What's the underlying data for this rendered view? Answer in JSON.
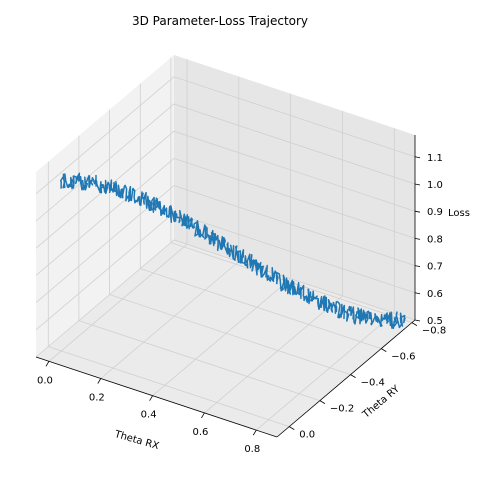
{
  "chart_data": {
    "type": "line",
    "projection": "3d",
    "title": "3D Parameter-Loss Trajectory",
    "xlabel": "Theta RX",
    "ylabel": "Theta RY",
    "zlabel": "Loss",
    "xlim": [
      -0.05,
      0.88
    ],
    "ylim": [
      -0.82,
      0.08
    ],
    "zlim": [
      0.5,
      1.18
    ],
    "xticks": [
      "0.0",
      "0.2",
      "0.4",
      "0.6",
      "0.8"
    ],
    "yticks": [
      "−0.8",
      "−0.6",
      "−0.4",
      "−0.2",
      "0.0"
    ],
    "zticks": [
      "0.5",
      "0.6",
      "0.7",
      "0.8",
      "0.9",
      "1.0",
      "1.1"
    ],
    "grid": true,
    "series": [
      {
        "color": "#1f77b4",
        "path_description": "noisy descent from (x≈0.0, y≈0.0, loss≈1.12) to (x≈0.85, y≈-0.80, loss≈0.5)",
        "start": {
          "x": 0.0,
          "y": 0.0,
          "z": 1.12
        },
        "end": {
          "x": 0.85,
          "y": -0.8,
          "z": 0.5
        },
        "noise": 0.03,
        "n_points": 600
      }
    ]
  },
  "colors": {
    "line": "#1f77b4",
    "pane_left": "#f2f2f2",
    "pane_right": "#e6e6e6",
    "pane_floor": "#ebebeb",
    "grid": "#d0d0d0"
  }
}
